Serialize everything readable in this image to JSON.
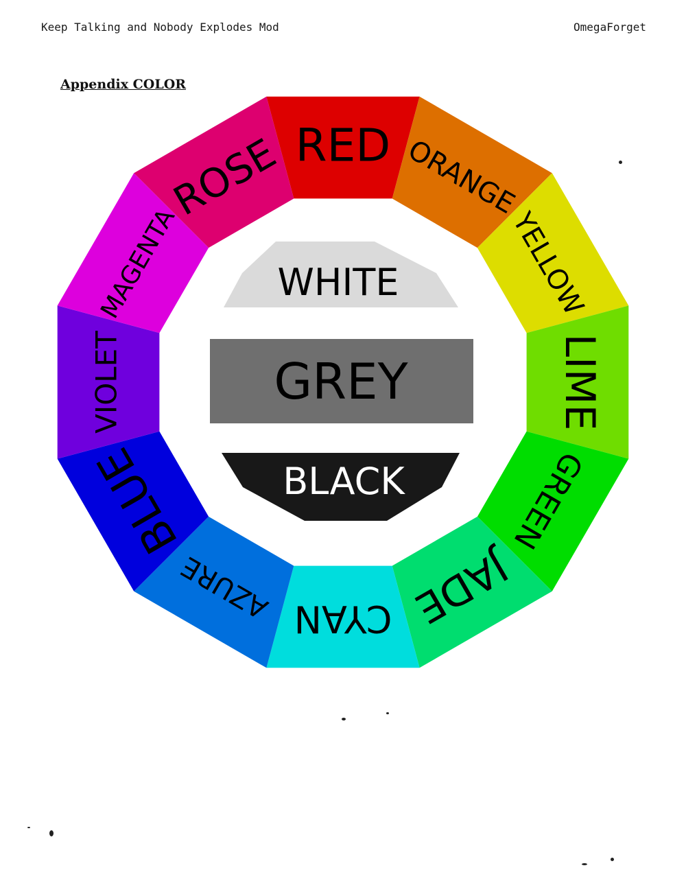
{
  "header": {
    "left": "Keep Talking and Nobody Explodes Mod",
    "right": "OmegaForget"
  },
  "appendix_title": "Appendix COLOR",
  "wheel": {
    "segments": [
      {
        "label": "RED",
        "color": "#dd0000"
      },
      {
        "label": "ORANGE",
        "color": "#dd6f00"
      },
      {
        "label": "YELLOW",
        "color": "#dddd00"
      },
      {
        "label": "LIME",
        "color": "#6fdd00"
      },
      {
        "label": "GREEN",
        "color": "#00dd00"
      },
      {
        "label": "JADE",
        "color": "#00dd6f"
      },
      {
        "label": "CYAN",
        "color": "#00dddd"
      },
      {
        "label": "AZURE",
        "color": "#006fdd"
      },
      {
        "label": "BLUE",
        "color": "#0000dd"
      },
      {
        "label": "VIOLET",
        "color": "#6f00dd"
      },
      {
        "label": "MAGENTA",
        "color": "#dd00dd"
      },
      {
        "label": "ROSE",
        "color": "#dd006f"
      }
    ],
    "center": {
      "white": {
        "label": "WHITE",
        "color": "#dadada"
      },
      "grey": {
        "label": "GREY",
        "color": "#6f6f6f"
      },
      "black": {
        "label": "BLACK",
        "color": "#181818"
      }
    }
  }
}
